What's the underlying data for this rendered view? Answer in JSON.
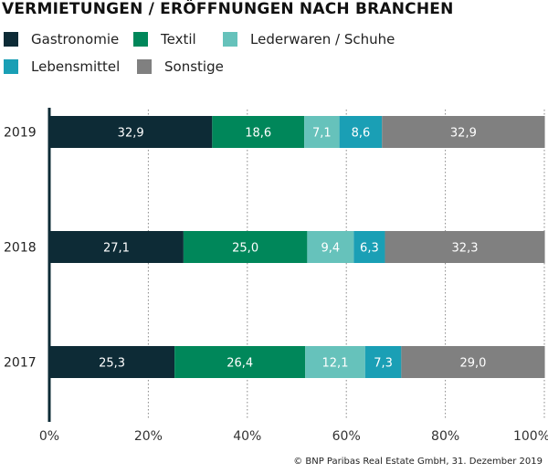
{
  "chart_data": {
    "type": "bar",
    "orientation": "horizontal",
    "stacked": true,
    "title": "VERMIETUNGEN / ERÖFFNUNGEN NACH BRANCHEN",
    "categories": [
      "2019",
      "2018",
      "2017"
    ],
    "series": [
      {
        "name": "Gastronomie",
        "color": "#0d2b36",
        "values": [
          32.9,
          27.1,
          25.3
        ]
      },
      {
        "name": "Textil",
        "color": "#00875a",
        "values": [
          18.6,
          25.0,
          26.4
        ]
      },
      {
        "name": "Lederwaren / Schuhe",
        "color": "#66c2bb",
        "values": [
          7.1,
          9.4,
          12.1
        ]
      },
      {
        "name": "Lebensmittel",
        "color": "#1a9fb5",
        "values": [
          8.6,
          6.3,
          7.3
        ]
      },
      {
        "name": "Sonstige",
        "color": "#808080",
        "values": [
          32.9,
          32.3,
          29.0
        ]
      }
    ],
    "data_labels": [
      [
        "32,9",
        "18,6",
        "7,1",
        "8,6",
        "32,9"
      ],
      [
        "27,1",
        "25,0",
        "9,4",
        "6,3",
        "32,3"
      ],
      [
        "25,3",
        "26,4",
        "12,1",
        "7,3",
        "29,0"
      ]
    ],
    "xticks": [
      "0%",
      "20%",
      "40%",
      "60%",
      "80%",
      "100%"
    ],
    "xlim": [
      0,
      100
    ],
    "grid": "vertical dotted",
    "legend": "top"
  },
  "credit": "© BNP Paribas Real Estate GmbH, 31. Dezember 2019"
}
